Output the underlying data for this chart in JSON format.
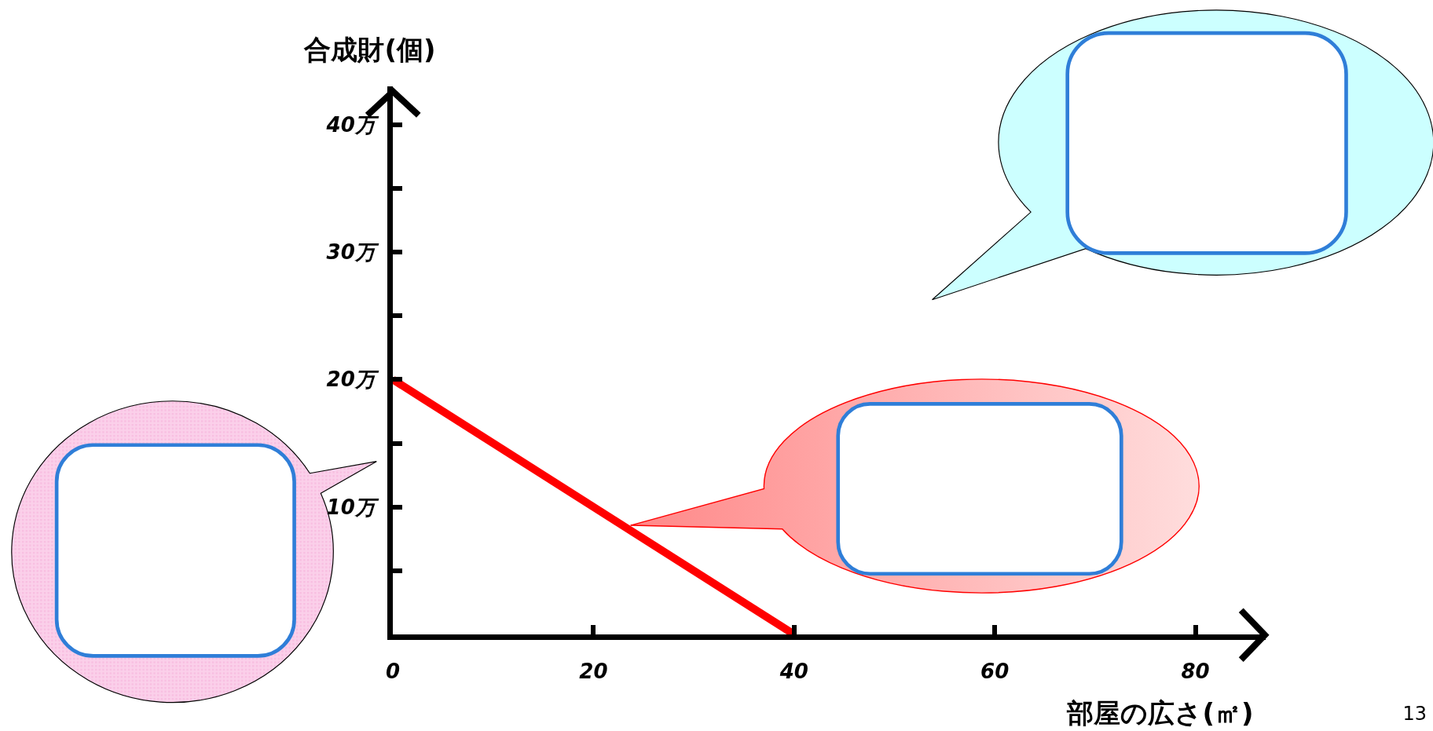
{
  "chart_data": {
    "type": "line",
    "xlabel": "部屋の広さ(㎡)",
    "ylabel": "合成財(個)",
    "x": [
      0,
      40
    ],
    "series": [
      {
        "color": "#ff0000",
        "values": [
          20,
          0
        ]
      }
    ],
    "xlim": [
      0,
      87
    ],
    "xticks": [
      0,
      20,
      40,
      60,
      80
    ],
    "ylim": [
      0,
      43
    ],
    "yticks": [
      {
        "value": 5,
        "label": null
      },
      {
        "value": 10,
        "label": "10万"
      },
      {
        "value": 15,
        "label": null
      },
      {
        "value": 20,
        "label": "20万"
      },
      {
        "value": 25,
        "label": null
      },
      {
        "value": 30,
        "label": "30万"
      },
      {
        "value": 35,
        "label": null
      },
      {
        "value": 40,
        "label": "40万"
      }
    ],
    "grid": false,
    "marker": "none",
    "line_style": "solid",
    "annotations": [
      "13"
    ]
  }
}
